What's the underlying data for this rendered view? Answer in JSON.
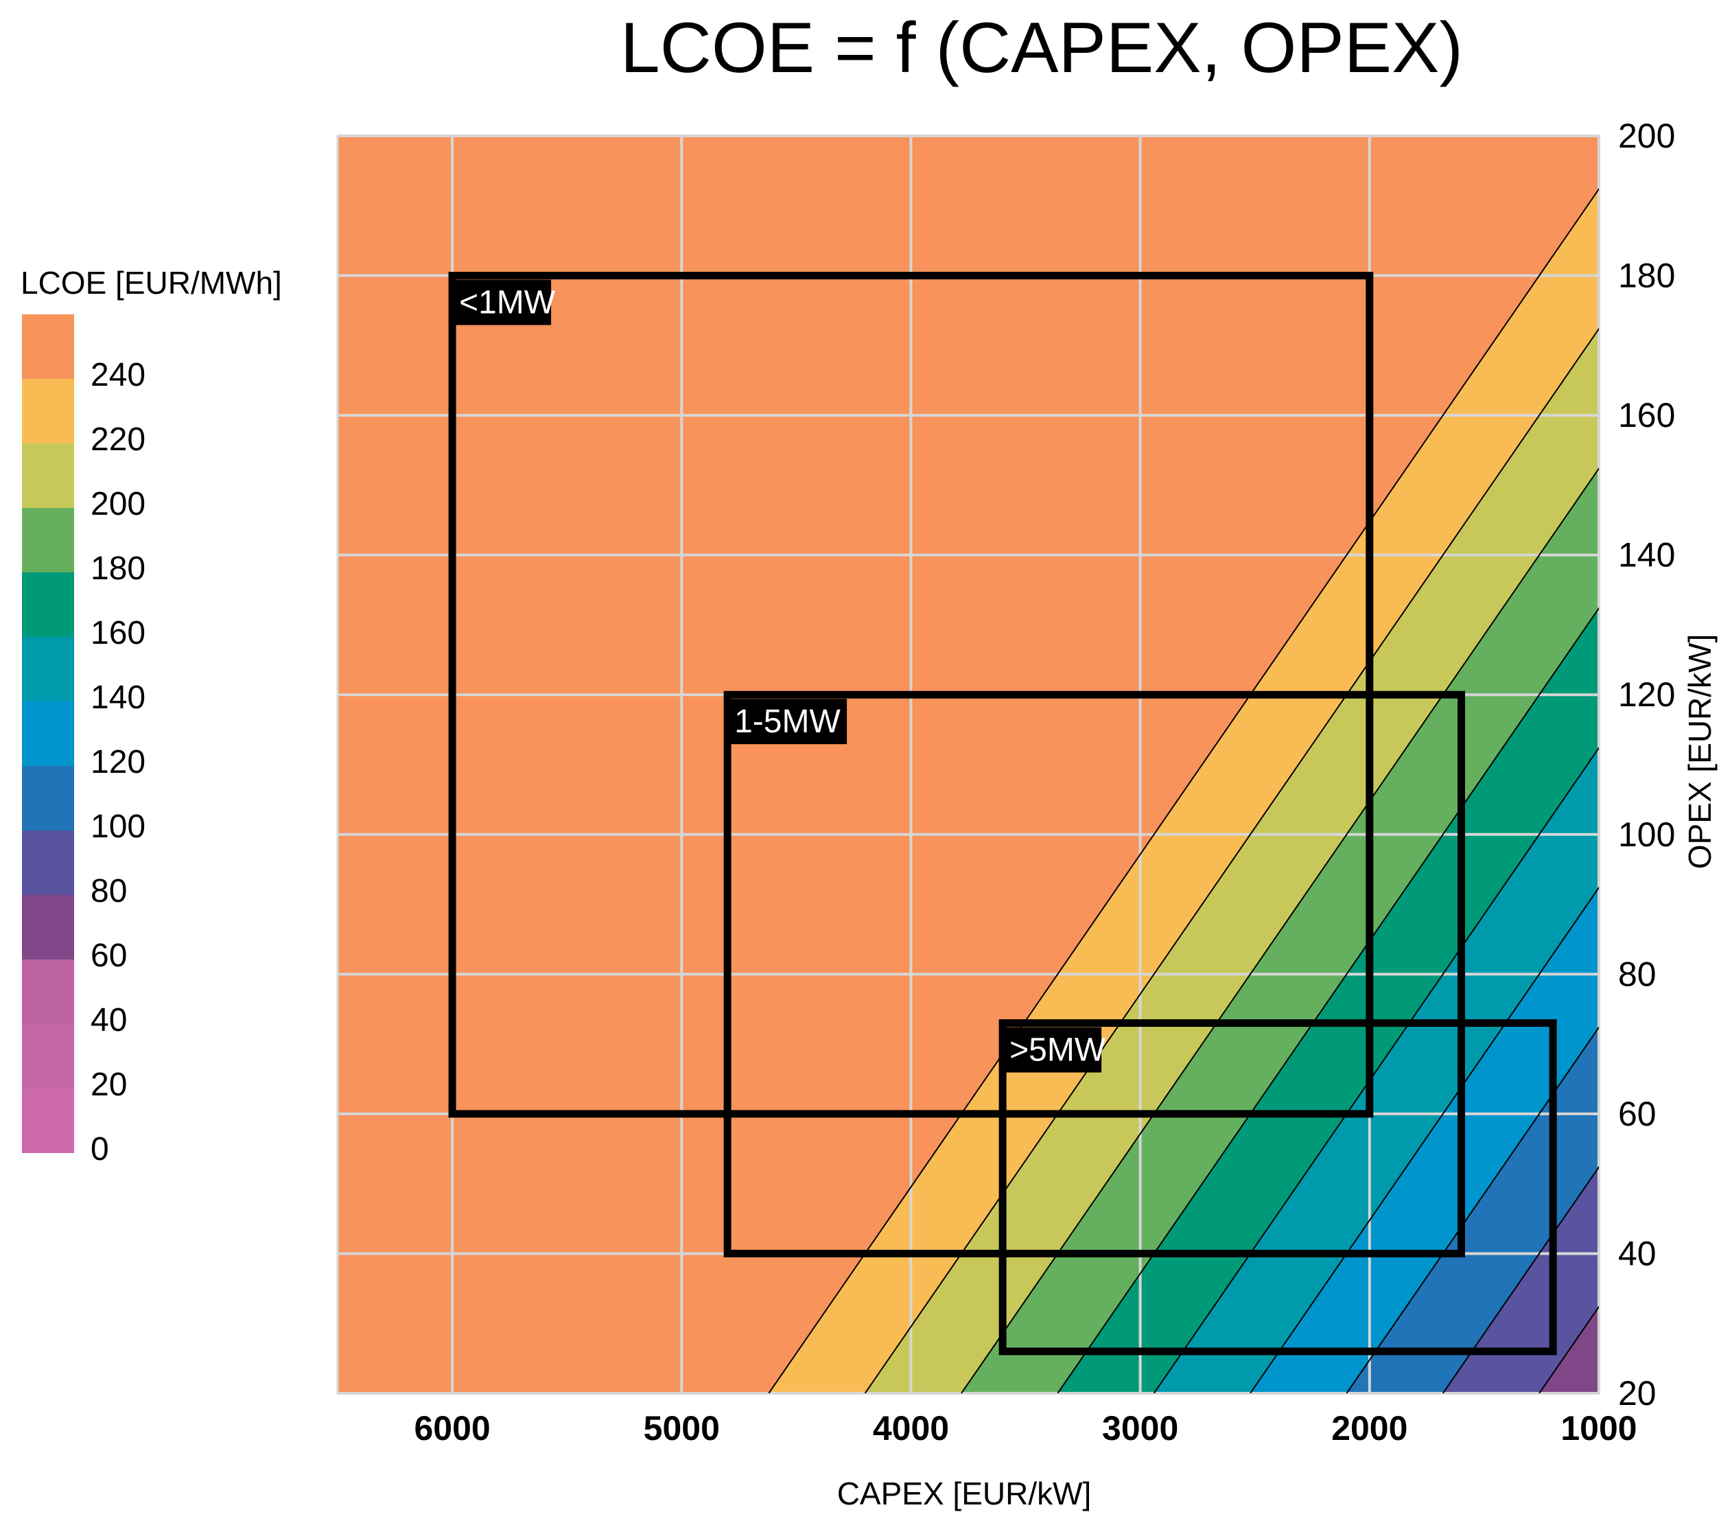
{
  "chart_data": {
    "type": "heatmap",
    "title": "LCOE = f (CAPEX, OPEX)",
    "xlabel": "CAPEX [EUR/kW]",
    "ylabel": "OPEX [EUR/kW]",
    "xlim": [
      6500,
      1000
    ],
    "ylim": [
      20,
      200
    ],
    "x_ticks": [
      6000,
      5000,
      4000,
      3000,
      2000,
      1000
    ],
    "y_ticks": [
      20,
      40,
      60,
      80,
      100,
      120,
      140,
      160,
      180,
      200
    ],
    "grid": true,
    "colorbar": {
      "title": "LCOE [EUR/MWh]",
      "tick_labels": [
        "240",
        "220",
        "200",
        "180",
        "160",
        "140",
        "120",
        "100",
        "80",
        "60",
        "40",
        "20",
        "0"
      ],
      "levels": [
        {
          "from": 240,
          "to": 260,
          "color": "#F7935B"
        },
        {
          "from": 220,
          "to": 240,
          "color": "#F9BB53"
        },
        {
          "from": 200,
          "to": 220,
          "color": "#C8C85A"
        },
        {
          "from": 180,
          "to": 200,
          "color": "#65B05E"
        },
        {
          "from": 160,
          "to": 180,
          "color": "#009A78"
        },
        {
          "from": 140,
          "to": 160,
          "color": "#009AAD"
        },
        {
          "from": 120,
          "to": 140,
          "color": "#0095CC"
        },
        {
          "from": 100,
          "to": 120,
          "color": "#2174B8"
        },
        {
          "from": 80,
          "to": 100,
          "color": "#5953A0"
        },
        {
          "from": 60,
          "to": 80,
          "color": "#7F4788"
        },
        {
          "from": 40,
          "to": 60,
          "color": "#BE64A0"
        },
        {
          "from": 20,
          "to": 40,
          "color": "#C566A6"
        },
        {
          "from": 0,
          "to": 20,
          "color": "#CC6AAC"
        }
      ]
    },
    "lcoe_model": {
      "capex_per_lcoe": 21,
      "opex_per_lcoe": 1,
      "offset": 0
    },
    "regions": [
      {
        "label": "<1MW",
        "capex": [
          6000,
          2000
        ],
        "opex": [
          60,
          180
        ]
      },
      {
        "label": "1-5MW",
        "capex": [
          4800,
          1600
        ],
        "opex": [
          40,
          120
        ]
      },
      {
        "label": ">5MW",
        "capex": [
          3600,
          1200
        ],
        "opex": [
          26,
          73
        ]
      }
    ]
  }
}
